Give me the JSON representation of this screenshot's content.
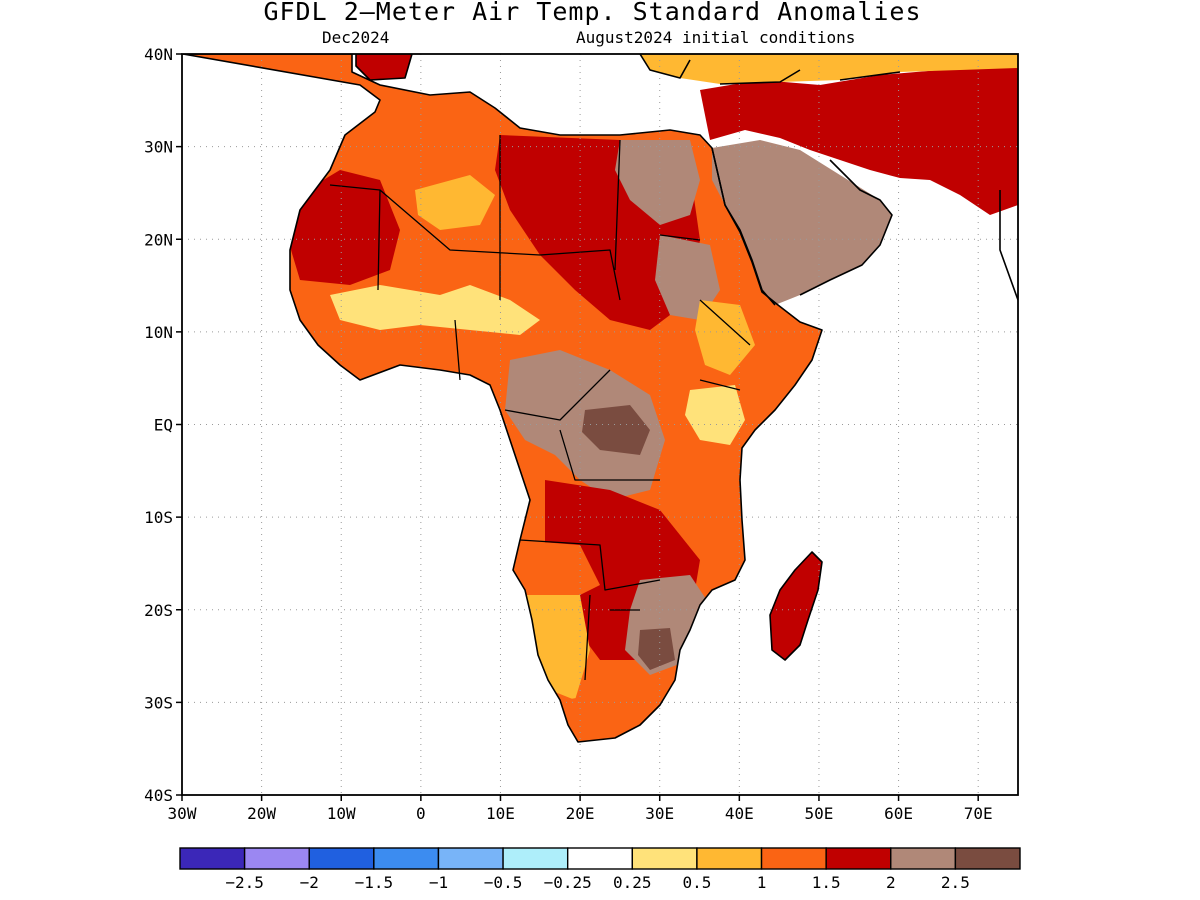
{
  "title": "GFDL 2–Meter Air Temp. Standard Anomalies",
  "subtitle_left": "Dec2024",
  "subtitle_right": "August2024 initial conditions",
  "map": {
    "lon_range": [
      -30,
      75
    ],
    "lat_range": [
      -40,
      40
    ],
    "lat_ticks": [
      {
        "value": 40,
        "label": "40N"
      },
      {
        "value": 30,
        "label": "30N"
      },
      {
        "value": 20,
        "label": "20N"
      },
      {
        "value": 10,
        "label": "10N"
      },
      {
        "value": 0,
        "label": "EQ"
      },
      {
        "value": -10,
        "label": "10S"
      },
      {
        "value": -20,
        "label": "20S"
      },
      {
        "value": -30,
        "label": "30S"
      },
      {
        "value": -40,
        "label": "40S"
      }
    ],
    "lon_ticks": [
      {
        "value": -30,
        "label": "30W"
      },
      {
        "value": -20,
        "label": "20W"
      },
      {
        "value": -10,
        "label": "10W"
      },
      {
        "value": 0,
        "label": "0"
      },
      {
        "value": 10,
        "label": "10E"
      },
      {
        "value": 20,
        "label": "20E"
      },
      {
        "value": 30,
        "label": "30E"
      },
      {
        "value": 40,
        "label": "40E"
      },
      {
        "value": 50,
        "label": "50E"
      },
      {
        "value": 60,
        "label": "60E"
      },
      {
        "value": 70,
        "label": "70E"
      }
    ],
    "grid": "dotted"
  },
  "legend": {
    "colors": [
      "#3b27b8",
      "#9b87f2",
      "#2060e0",
      "#3c8cf0",
      "#78b4f8",
      "#aeeefa",
      "#ffffff",
      "#ffe27a",
      "#ffb832",
      "#fa6414",
      "#c00000",
      "#b08878",
      "#7a4c40"
    ],
    "labels": [
      "−2.5",
      "−2",
      "−1.5",
      "−1",
      "−0.5",
      "−0.25",
      "0.25",
      "0.5",
      "1",
      "1.5",
      "2",
      "2.5"
    ]
  }
}
